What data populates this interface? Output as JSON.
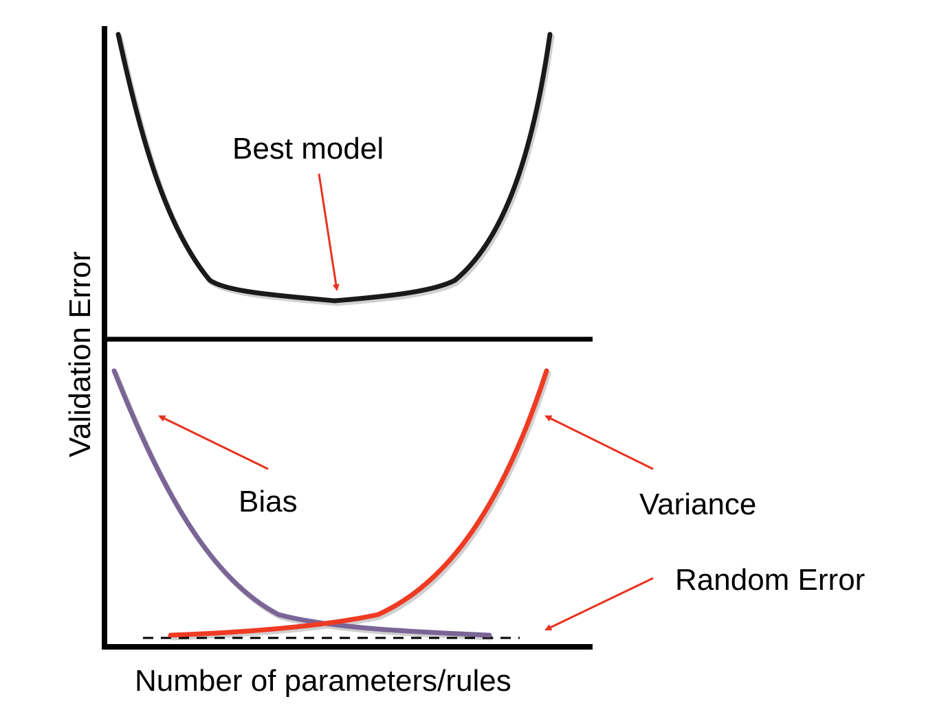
{
  "labels": {
    "y_axis": "Validation Error",
    "x_axis": "Number of parameters/rules",
    "best_model": "Best model",
    "bias": "Bias",
    "variance": "Variance",
    "random_error": "Random Error"
  },
  "colors": {
    "axis": "#000000",
    "total_error_curve": "#1a1a1a",
    "bias_curve": "#7a6596",
    "variance_curve": "#ef3b24",
    "arrow": "#e8321f",
    "random_error_line": "#000000",
    "background": "#ffffff"
  },
  "icons": {
    "arrow": "arrow-icon"
  }
}
